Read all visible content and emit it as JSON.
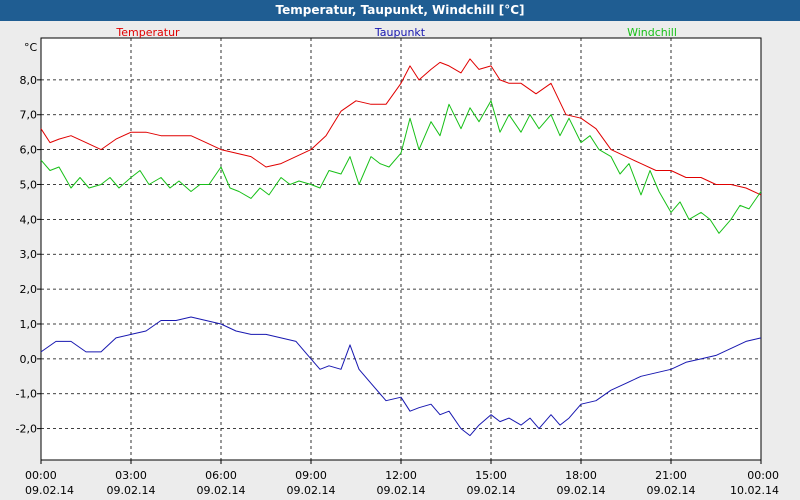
{
  "chart_data": {
    "type": "line",
    "title": "Temperatur, Taupunkt, Windchill [°C]",
    "ylabel": "°C",
    "ylim": [
      -2.9,
      9.2
    ],
    "grid": true,
    "legend_placement": "top",
    "y_ticks": [
      "8,0",
      "7,0",
      "6,0",
      "5,0",
      "4,0",
      "3,0",
      "2,0",
      "1,0",
      "0,0",
      "-1,0",
      "-2,0"
    ],
    "y_tick_values": [
      8,
      7,
      6,
      5,
      4,
      3,
      2,
      1,
      0,
      -1,
      -2
    ],
    "x_range_hours": [
      0,
      24
    ],
    "x_ticks": [
      {
        "time": "00:00",
        "date": "09.02.14"
      },
      {
        "time": "03:00",
        "date": "09.02.14"
      },
      {
        "time": "06:00",
        "date": "09.02.14"
      },
      {
        "time": "09:00",
        "date": "09.02.14"
      },
      {
        "time": "12:00",
        "date": "09.02.14"
      },
      {
        "time": "15:00",
        "date": "09.02.14"
      },
      {
        "time": "18:00",
        "date": "09.02.14"
      },
      {
        "time": "21:00",
        "date": "09.02.14"
      },
      {
        "time": "00:00",
        "date": "10.02.14"
      }
    ],
    "series": [
      {
        "name": "Temperatur",
        "color": "#e00000",
        "x": [
          0,
          0.3,
          0.6,
          1,
          1.5,
          2,
          2.5,
          3,
          3.5,
          4,
          4.5,
          5,
          5.5,
          6,
          6.5,
          7,
          7.5,
          8,
          8.5,
          9,
          9.5,
          10,
          10.5,
          11,
          11.5,
          12,
          12.3,
          12.6,
          13,
          13.3,
          13.6,
          14,
          14.3,
          14.6,
          15,
          15.3,
          15.6,
          16,
          16.5,
          17,
          17.5,
          18,
          18.5,
          19,
          19.5,
          20,
          20.5,
          21,
          21.5,
          22,
          22.5,
          23,
          23.5,
          24
        ],
        "values": [
          6.6,
          6.2,
          6.3,
          6.4,
          6.2,
          6.0,
          6.3,
          6.5,
          6.5,
          6.4,
          6.4,
          6.4,
          6.2,
          6.0,
          5.9,
          5.8,
          5.5,
          5.6,
          5.8,
          6.0,
          6.4,
          7.1,
          7.4,
          7.3,
          7.3,
          7.9,
          8.4,
          8.0,
          8.3,
          8.5,
          8.4,
          8.2,
          8.6,
          8.3,
          8.4,
          8.0,
          7.9,
          7.9,
          7.6,
          7.9,
          7.0,
          6.9,
          6.6,
          6.0,
          5.8,
          5.6,
          5.4,
          5.4,
          5.2,
          5.2,
          5.0,
          5.0,
          4.9,
          4.7
        ]
      },
      {
        "name": "Taupunkt",
        "color": "#1818b0",
        "x": [
          0,
          0.5,
          1,
          1.5,
          2,
          2.5,
          3,
          3.5,
          4,
          4.5,
          5,
          5.5,
          6,
          6.5,
          7,
          7.5,
          8,
          8.5,
          9,
          9.3,
          9.6,
          10,
          10.3,
          10.6,
          11,
          11.5,
          12,
          12.3,
          12.6,
          13,
          13.3,
          13.6,
          14,
          14.3,
          14.6,
          15,
          15.3,
          15.6,
          16,
          16.3,
          16.6,
          17,
          17.3,
          17.6,
          18,
          18.5,
          19,
          19.5,
          20,
          20.5,
          21,
          21.5,
          22,
          22.5,
          23,
          23.5,
          24
        ],
        "values": [
          0.2,
          0.5,
          0.5,
          0.2,
          0.2,
          0.6,
          0.7,
          0.8,
          1.1,
          1.1,
          1.2,
          1.1,
          1.0,
          0.8,
          0.7,
          0.7,
          0.6,
          0.5,
          0.0,
          -0.3,
          -0.2,
          -0.3,
          0.4,
          -0.3,
          -0.7,
          -1.2,
          -1.1,
          -1.5,
          -1.4,
          -1.3,
          -1.6,
          -1.5,
          -2.0,
          -2.2,
          -1.9,
          -1.6,
          -1.8,
          -1.7,
          -1.9,
          -1.7,
          -2.0,
          -1.6,
          -1.9,
          -1.7,
          -1.3,
          -1.2,
          -0.9,
          -0.7,
          -0.5,
          -0.4,
          -0.3,
          -0.1,
          0.0,
          0.1,
          0.3,
          0.5,
          0.6
        ]
      },
      {
        "name": "Windchill",
        "color": "#18c018",
        "x": [
          0,
          0.3,
          0.6,
          1,
          1.3,
          1.6,
          2,
          2.3,
          2.6,
          3,
          3.3,
          3.6,
          4,
          4.3,
          4.6,
          5,
          5.3,
          5.6,
          6,
          6.3,
          6.6,
          7,
          7.3,
          7.6,
          8,
          8.3,
          8.6,
          9,
          9.3,
          9.6,
          10,
          10.3,
          10.6,
          11,
          11.3,
          11.6,
          12,
          12.3,
          12.6,
          13,
          13.3,
          13.6,
          14,
          14.3,
          14.6,
          15,
          15.3,
          15.6,
          16,
          16.3,
          16.6,
          17,
          17.3,
          17.6,
          18,
          18.3,
          18.6,
          19,
          19.3,
          19.6,
          20,
          20.3,
          20.6,
          21,
          21.3,
          21.6,
          22,
          22.3,
          22.6,
          23,
          23.3,
          23.6,
          24
        ],
        "values": [
          5.7,
          5.4,
          5.5,
          4.9,
          5.2,
          4.9,
          5.0,
          5.2,
          4.9,
          5.2,
          5.4,
          5.0,
          5.2,
          4.9,
          5.1,
          4.8,
          5.0,
          5.0,
          5.5,
          4.9,
          4.8,
          4.6,
          4.9,
          4.7,
          5.2,
          5.0,
          5.1,
          5.0,
          4.9,
          5.4,
          5.3,
          5.8,
          5.0,
          5.8,
          5.6,
          5.5,
          5.9,
          6.9,
          6.0,
          6.8,
          6.4,
          7.3,
          6.6,
          7.2,
          6.8,
          7.4,
          6.5,
          7.0,
          6.5,
          7.0,
          6.6,
          7.0,
          6.4,
          6.9,
          6.2,
          6.4,
          6.0,
          5.8,
          5.3,
          5.6,
          4.7,
          5.4,
          4.8,
          4.2,
          4.5,
          4.0,
          4.2,
          4.0,
          3.6,
          4.0,
          4.4,
          4.3,
          4.8
        ]
      }
    ]
  }
}
